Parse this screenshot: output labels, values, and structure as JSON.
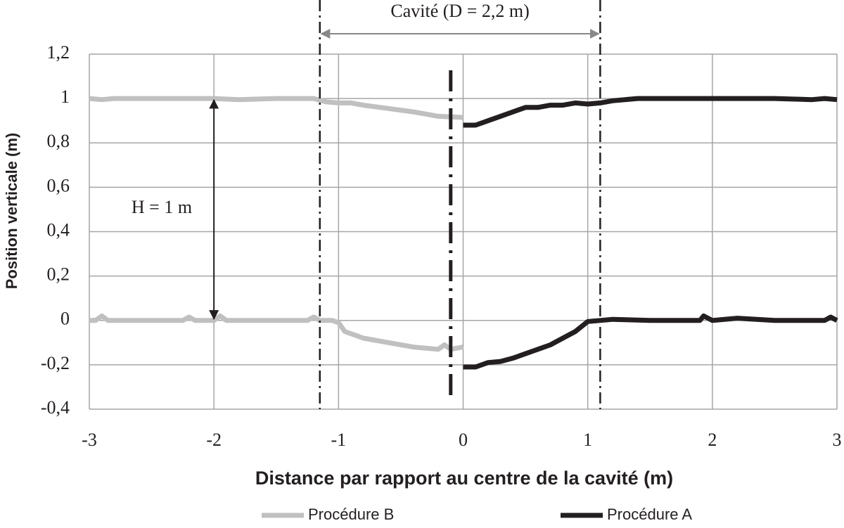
{
  "chart_data": {
    "type": "line",
    "xlabel": "Distance par rapport au centre de la cavité (m)",
    "ylabel": "Position verticale (m)",
    "xlim": [
      -3,
      3
    ],
    "xticks": [
      -3,
      -2,
      -1,
      0,
      1,
      2,
      3
    ],
    "ylim": [
      -0.4,
      1.2
    ],
    "yticks": [
      {
        "value": -0.4,
        "label": "-0,4"
      },
      {
        "value": -0.2,
        "label": "-0,2"
      },
      0,
      {
        "value": 0.2,
        "label": "0,2"
      },
      {
        "value": 0.4,
        "label": "0,4"
      },
      {
        "value": 0.6,
        "label": "0,6"
      },
      {
        "value": 0.8,
        "label": "0,8"
      },
      1,
      {
        "value": 1.2,
        "label": "1,2"
      }
    ],
    "grid": true,
    "series": [
      {
        "name": "Procédure B",
        "color": "#c0c0c0",
        "x": [
          -3,
          -2.9,
          -2.8,
          -2.5,
          -2,
          -1.8,
          -1.5,
          -1.2,
          -1.1,
          -1,
          -0.9,
          -0.8,
          -0.6,
          -0.4,
          -0.2,
          0,
          null,
          -3,
          -2.95,
          -2.9,
          -2.85,
          -2.5,
          -2.25,
          -2.2,
          -2.15,
          -2,
          -1.95,
          -1.9,
          -1.5,
          -1.25,
          -1.2,
          -1.15,
          -1.05,
          -1,
          -0.95,
          -0.8,
          -0.6,
          -0.4,
          -0.2,
          -0.15,
          -0.1,
          0
        ],
        "values": [
          1,
          0.995,
          1,
          1,
          1,
          0.995,
          1,
          1,
          0.985,
          0.98,
          0.98,
          0.97,
          0.955,
          0.94,
          0.92,
          0.915,
          null,
          0,
          0,
          0.02,
          0,
          0,
          0,
          0.015,
          0,
          0,
          0.02,
          0,
          0,
          0,
          0.015,
          0,
          0,
          -0.01,
          -0.05,
          -0.08,
          -0.1,
          -0.12,
          -0.13,
          -0.11,
          -0.13,
          -0.12
        ]
      },
      {
        "name": "Procédure A",
        "color": "#231f20",
        "x": [
          0,
          0.1,
          0.2,
          0.3,
          0.4,
          0.5,
          0.6,
          0.7,
          0.8,
          0.9,
          1,
          1.1,
          1.2,
          1.4,
          2,
          2.5,
          2.8,
          2.9,
          3,
          null,
          0,
          0.1,
          0.2,
          0.3,
          0.4,
          0.5,
          0.6,
          0.7,
          0.8,
          0.9,
          1,
          1.1,
          1.2,
          1.5,
          1.9,
          1.93,
          2,
          2.2,
          2.5,
          2.9,
          2.95,
          3
        ],
        "values": [
          0.88,
          0.88,
          0.9,
          0.92,
          0.94,
          0.96,
          0.96,
          0.97,
          0.97,
          0.98,
          0.975,
          0.98,
          0.99,
          1,
          1,
          1,
          0.995,
          1,
          0.995,
          null,
          -0.21,
          -0.21,
          -0.19,
          -0.185,
          -0.17,
          -0.15,
          -0.13,
          -0.11,
          -0.08,
          -0.05,
          -0.005,
          0,
          0.005,
          0,
          0,
          0.02,
          0,
          0.01,
          0,
          0,
          0.015,
          0
        ]
      }
    ],
    "annotations": [
      {
        "text": "Cavité (D = 2,2 m)",
        "x": [
          -1.15,
          1.1
        ]
      },
      {
        "text": "H = 1 m",
        "x": -2,
        "y": [
          0,
          1
        ]
      }
    ],
    "center_line_x": -0.1
  }
}
